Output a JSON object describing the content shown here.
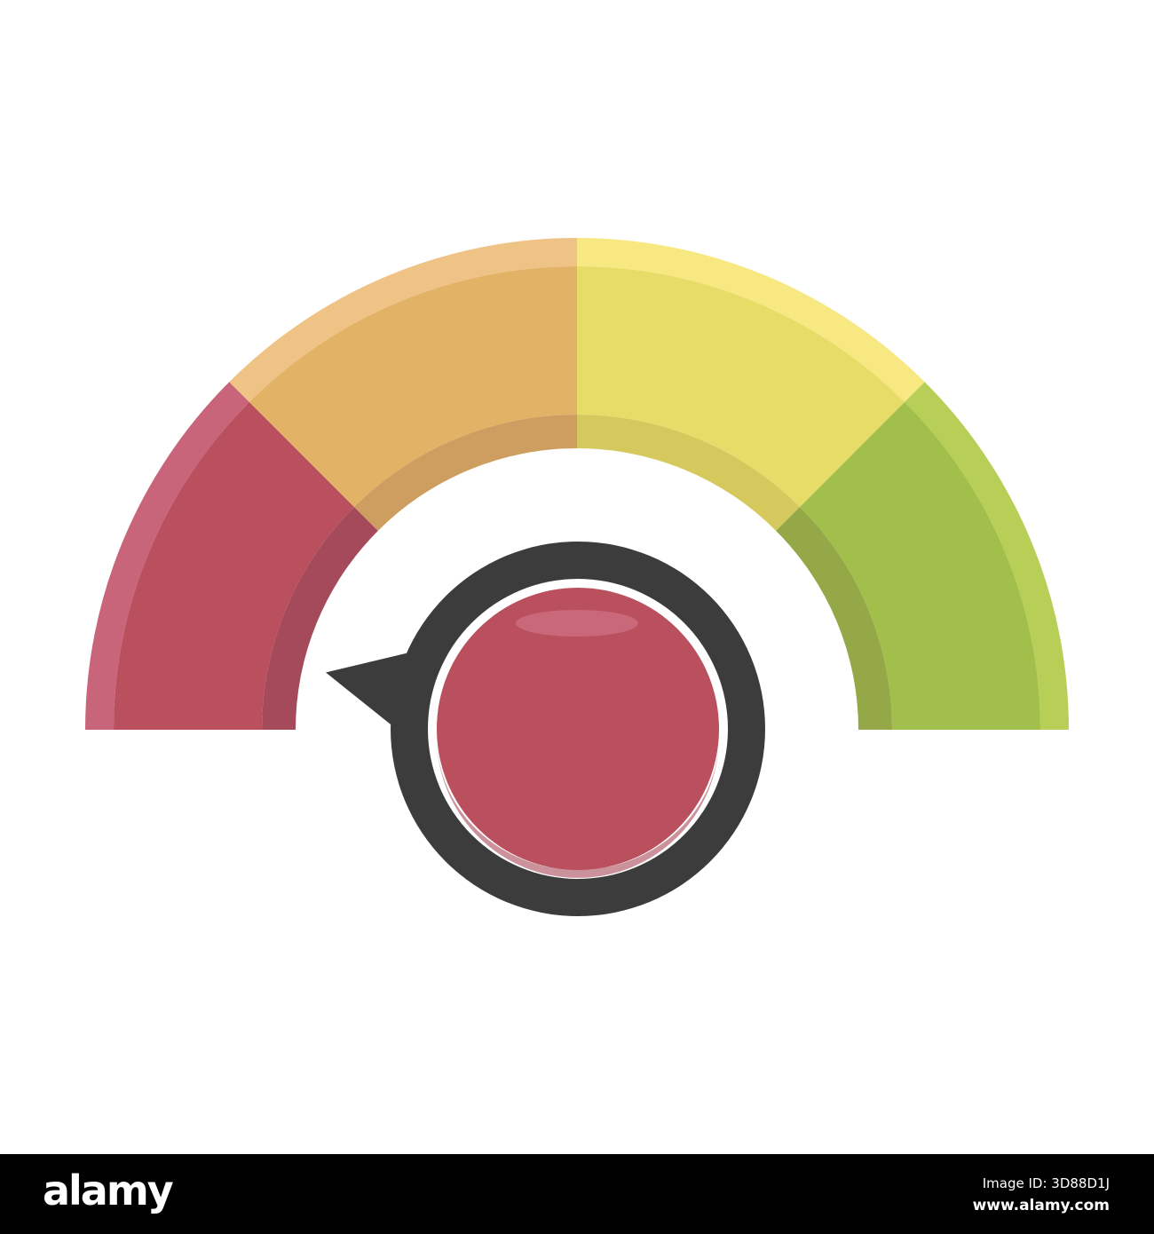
{
  "gauge": {
    "segments": [
      {
        "name": "red",
        "outer": "#c8657a",
        "main": "#ba4f5e",
        "inner": "#a54a5b"
      },
      {
        "name": "orange",
        "outer": "#efc285",
        "main": "#e2b367",
        "inner": "#cd9e60"
      },
      {
        "name": "yellow",
        "outer": "#f7e882",
        "main": "#e8dc69",
        "inner": "#d5c95e"
      },
      {
        "name": "green",
        "outer": "#b8cf57",
        "main": "#a2be4b",
        "inner": "#94a847"
      }
    ],
    "pointer_level": 0.07,
    "knob_ring_color": "#3c3c3c",
    "knob_color": "#ba4f5e",
    "knob_highlight": "#c96878"
  },
  "footer": {
    "logo": "alamy",
    "image_id": "Image ID: 3D88D1J",
    "site": "www.alamy.com"
  }
}
